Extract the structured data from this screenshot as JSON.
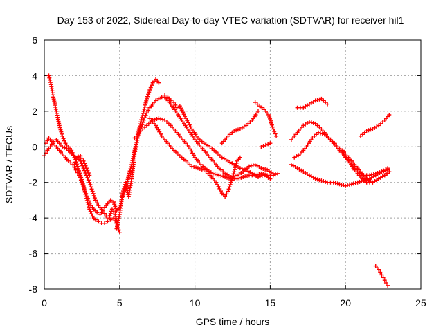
{
  "chart_data": {
    "type": "scatter",
    "title": "Day 153 of 2022, Sidereal Day-to-day VTEC variation (SDTVAR) for receiver hil1",
    "xlabel": "GPS time / hours",
    "ylabel": "SDTVAR / TECUs",
    "xlim": [
      0,
      25
    ],
    "ylim": [
      -8,
      6
    ],
    "xticks": [
      0,
      5,
      10,
      15,
      20,
      25
    ],
    "yticks": [
      -8,
      -6,
      -4,
      -2,
      0,
      2,
      4,
      6
    ],
    "grid": true,
    "marker": "plus",
    "color": "#ff0000",
    "series": [
      {
        "x": [
          0.3,
          0.45,
          0.6,
          0.8,
          1.0,
          1.2,
          1.4,
          1.6,
          1.8,
          2.0,
          2.2,
          2.4,
          2.6,
          2.8,
          3.0,
          3.2,
          3.4,
          3.6,
          3.8,
          4.0,
          4.2,
          4.4,
          4.6,
          4.8,
          5.0
        ],
        "y": [
          4.0,
          3.5,
          2.8,
          2.0,
          1.2,
          0.6,
          0.2,
          0.0,
          -0.2,
          -0.6,
          -1.1,
          -1.6,
          -2.2,
          -2.9,
          -3.5,
          -3.9,
          -4.1,
          -4.2,
          -4.3,
          -4.3,
          -4.2,
          -4.1,
          -4.0,
          -4.3,
          -4.8
        ]
      },
      {
        "x": [
          0.1,
          0.3,
          0.5,
          0.8,
          1.0,
          1.3,
          1.6,
          1.9,
          2.1,
          2.3,
          2.5,
          2.7,
          2.9,
          3.1,
          3.3,
          3.5,
          3.7,
          3.9,
          4.1,
          4.3,
          4.5,
          4.7,
          4.9
        ],
        "y": [
          0.2,
          0.5,
          0.3,
          0.0,
          -0.2,
          -0.5,
          -0.8,
          -1.0,
          -1.3,
          -1.6,
          -2.0,
          -2.5,
          -2.9,
          -3.3,
          -3.5,
          -3.7,
          -3.8,
          -3.6,
          -3.9,
          -4.0,
          -3.5,
          -3.8,
          -4.4
        ]
      },
      {
        "x": [
          0.0,
          0.2,
          0.4,
          0.6,
          0.8,
          1.0,
          1.2,
          1.5,
          1.8,
          2.1,
          2.4,
          2.6,
          2.8,
          3.0
        ],
        "y": [
          -0.5,
          -0.2,
          0.0,
          0.3,
          0.4,
          0.2,
          0.0,
          -0.1,
          -0.4,
          -0.6,
          -0.5,
          -0.8,
          -1.2,
          -1.6
        ]
      },
      {
        "x": [
          2.0,
          2.2,
          2.4,
          2.6,
          2.8,
          3.0,
          3.2,
          3.4,
          3.6,
          3.8,
          4.0,
          4.2,
          4.4,
          4.6,
          4.8,
          5.0
        ],
        "y": [
          -1.0,
          -0.6,
          -0.8,
          -1.2,
          -1.6,
          -2.0,
          -2.5,
          -3.0,
          -3.3,
          -3.5,
          -3.4,
          -3.2,
          -3.0,
          -3.1,
          -3.6,
          -3.4
        ]
      },
      {
        "x": [
          4.8,
          5.0,
          5.2,
          5.4,
          5.6,
          5.8,
          6.0,
          6.2,
          6.4,
          6.6,
          6.8,
          7.0,
          7.2,
          7.4,
          7.6,
          7.8,
          8.0,
          8.2,
          8.4,
          8.6,
          8.8
        ],
        "y": [
          -4.6,
          -3.8,
          -2.6,
          -2.0,
          -2.8,
          -1.8,
          -0.4,
          0.5,
          1.0,
          1.5,
          1.9,
          2.2,
          2.4,
          2.6,
          2.7,
          2.8,
          2.9,
          2.8,
          2.6,
          2.5,
          2.2
        ]
      },
      {
        "x": [
          5.2,
          5.4,
          5.6,
          5.8,
          6.0,
          6.2,
          6.4,
          6.6,
          6.8,
          7.0,
          7.2,
          7.4,
          7.6
        ],
        "y": [
          -2.8,
          -2.4,
          -1.6,
          -1.0,
          -0.2,
          0.6,
          1.4,
          2.0,
          2.7,
          3.2,
          3.6,
          3.8,
          3.6
        ]
      },
      {
        "x": [
          6.0,
          6.4,
          6.8,
          7.2,
          7.6,
          8.0,
          8.4,
          8.8,
          9.2,
          9.6,
          10.0,
          10.4,
          10.8,
          11.2,
          11.6,
          12.0,
          12.4,
          12.8,
          13.2,
          13.6,
          14.0,
          14.4,
          14.8,
          15.2,
          15.5
        ],
        "y": [
          0.5,
          0.9,
          1.2,
          1.5,
          1.6,
          1.5,
          1.2,
          0.8,
          0.4,
          0.0,
          -0.6,
          -1.0,
          -1.3,
          -1.5,
          -1.6,
          -1.7,
          -1.8,
          -1.8,
          -1.7,
          -1.6,
          -1.6,
          -1.5,
          -1.6,
          -1.6,
          -1.5
        ]
      },
      {
        "x": [
          7.0,
          7.4,
          7.8,
          8.2,
          8.6,
          9.0,
          9.4,
          9.8,
          10.2,
          10.6,
          11.0,
          11.4,
          11.8,
          12.0,
          12.2,
          12.4,
          12.6,
          12.8,
          13.0
        ],
        "y": [
          1.6,
          1.2,
          0.6,
          0.2,
          -0.2,
          -0.5,
          -0.8,
          -1.1,
          -1.2,
          -1.3,
          -1.6,
          -2.0,
          -2.6,
          -2.8,
          -2.5,
          -2.0,
          -1.4,
          -0.8,
          -0.6
        ]
      },
      {
        "x": [
          8.0,
          8.4,
          8.8,
          9.2,
          9.6,
          10.0,
          10.4,
          10.8,
          11.2,
          11.6,
          12.0,
          12.4,
          12.8,
          13.2,
          13.6,
          14.0,
          14.4,
          14.8,
          15.2
        ],
        "y": [
          2.8,
          2.4,
          1.9,
          1.4,
          0.9,
          0.4,
          0.0,
          -0.4,
          -0.8,
          -1.2,
          -1.5,
          -1.7,
          -1.6,
          -1.4,
          -1.1,
          -1.0,
          -1.2,
          -1.3,
          -1.5
        ]
      },
      {
        "x": [
          9.0,
          9.4,
          9.8,
          10.2,
          10.6,
          11.0,
          11.4,
          11.8,
          12.2,
          12.6,
          13.0,
          13.4,
          13.8,
          14.2,
          14.6,
          15.0
        ],
        "y": [
          2.3,
          1.6,
          1.0,
          0.5,
          0.2,
          0.0,
          -0.3,
          -0.6,
          -0.8,
          -1.0,
          -1.2,
          -1.3,
          -1.5,
          -1.7,
          -1.6,
          -1.8
        ]
      },
      {
        "x": [
          11.8,
          12.2,
          12.6,
          13.0,
          13.4,
          13.8,
          14.2
        ],
        "y": [
          0.2,
          0.6,
          0.9,
          1.0,
          1.2,
          1.5,
          2.0
        ]
      },
      {
        "x": [
          14.0,
          14.3,
          14.6,
          14.9,
          15.2,
          15.4
        ],
        "y": [
          2.5,
          2.3,
          2.1,
          1.8,
          1.0,
          0.6
        ]
      },
      {
        "x": [
          14.4,
          14.7,
          15.0
        ],
        "y": [
          0.0,
          0.1,
          0.2
        ]
      },
      {
        "x": [
          16.4,
          16.8,
          17.2,
          17.6,
          18.0,
          18.4,
          18.8,
          19.2,
          19.6,
          20.0,
          20.4,
          20.8,
          21.2,
          21.6,
          22.0,
          22.4,
          22.8
        ],
        "y": [
          -1.0,
          -1.2,
          -1.4,
          -1.6,
          -1.8,
          -1.9,
          -2.0,
          -2.0,
          -2.1,
          -2.2,
          -2.1,
          -2.0,
          -1.9,
          -1.8,
          -1.6,
          -1.4,
          -1.2
        ]
      },
      {
        "x": [
          16.4,
          16.8,
          17.2,
          17.6,
          18.0,
          18.4,
          18.8,
          19.2,
          19.6,
          20.0,
          20.4,
          20.8,
          21.2,
          21.6,
          22.0,
          22.4,
          22.8
        ],
        "y": [
          0.4,
          0.8,
          1.2,
          1.4,
          1.3,
          1.0,
          0.6,
          0.2,
          -0.2,
          -0.6,
          -1.0,
          -1.4,
          -1.6,
          -1.6,
          -1.5,
          -1.4,
          -1.3
        ]
      },
      {
        "x": [
          16.6,
          17.0,
          17.4,
          17.8,
          18.2,
          18.6,
          19.0,
          19.4,
          19.8,
          20.2,
          20.6,
          21.0,
          21.4,
          21.8,
          22.2,
          22.6,
          22.9
        ],
        "y": [
          -0.6,
          -0.4,
          0.0,
          0.5,
          0.8,
          0.7,
          0.4,
          0.1,
          -0.3,
          -0.8,
          -1.3,
          -1.7,
          -2.0,
          -2.0,
          -1.8,
          -1.6,
          -1.4
        ]
      },
      {
        "x": [
          16.8,
          17.2,
          17.6,
          18.0,
          18.4,
          18.8
        ],
        "y": [
          2.2,
          2.2,
          2.4,
          2.6,
          2.7,
          2.4
        ]
      },
      {
        "x": [
          19.8,
          20.2,
          20.6,
          21.0,
          21.4,
          21.8,
          22.2,
          22.6,
          22.9
        ],
        "y": [
          -0.2,
          -0.6,
          -1.0,
          -1.4,
          -1.8,
          -2.0,
          -1.8,
          -1.6,
          -1.4
        ]
      },
      {
        "x": [
          21.0,
          21.4,
          21.8,
          22.2,
          22.6,
          22.9
        ],
        "y": [
          0.6,
          0.9,
          1.0,
          1.2,
          1.5,
          1.8
        ]
      },
      {
        "x": [
          22.0,
          22.2,
          22.4,
          22.6,
          22.8
        ],
        "y": [
          -6.7,
          -6.9,
          -7.2,
          -7.5,
          -7.8
        ]
      }
    ]
  }
}
